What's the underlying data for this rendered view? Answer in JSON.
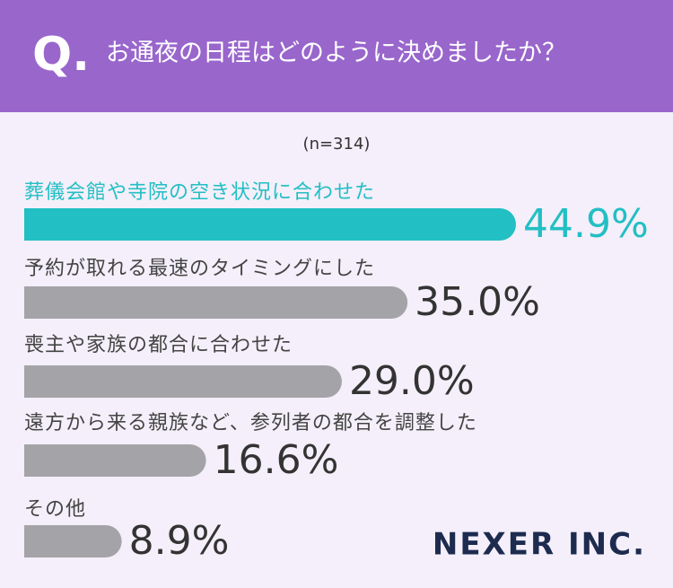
{
  "chart_data": {
    "type": "bar",
    "orientation": "horizontal",
    "title": "お通夜の日程はどのように決めましたか？",
    "question_mark": "Q.",
    "note": "(n=314)",
    "categories": [
      "葬儀会館や寺院の空き状況に合わせた",
      "予約が取れる最速のタイミングにした",
      "喪主や家族の都合に合わせた",
      "遠方から来る親族など、参列者の都合を調整した",
      "その他"
    ],
    "values": [
      44.9,
      35.0,
      29.0,
      16.6,
      8.9
    ],
    "value_labels": [
      "44.9%",
      "35.0%",
      "29.0%",
      "16.6%",
      "8.9%"
    ],
    "colors": [
      "#22bfc4",
      "#a4a4a8",
      "#a4a4a8",
      "#a4a4a8",
      "#a4a4a8"
    ],
    "logo": "NEXER INC."
  }
}
